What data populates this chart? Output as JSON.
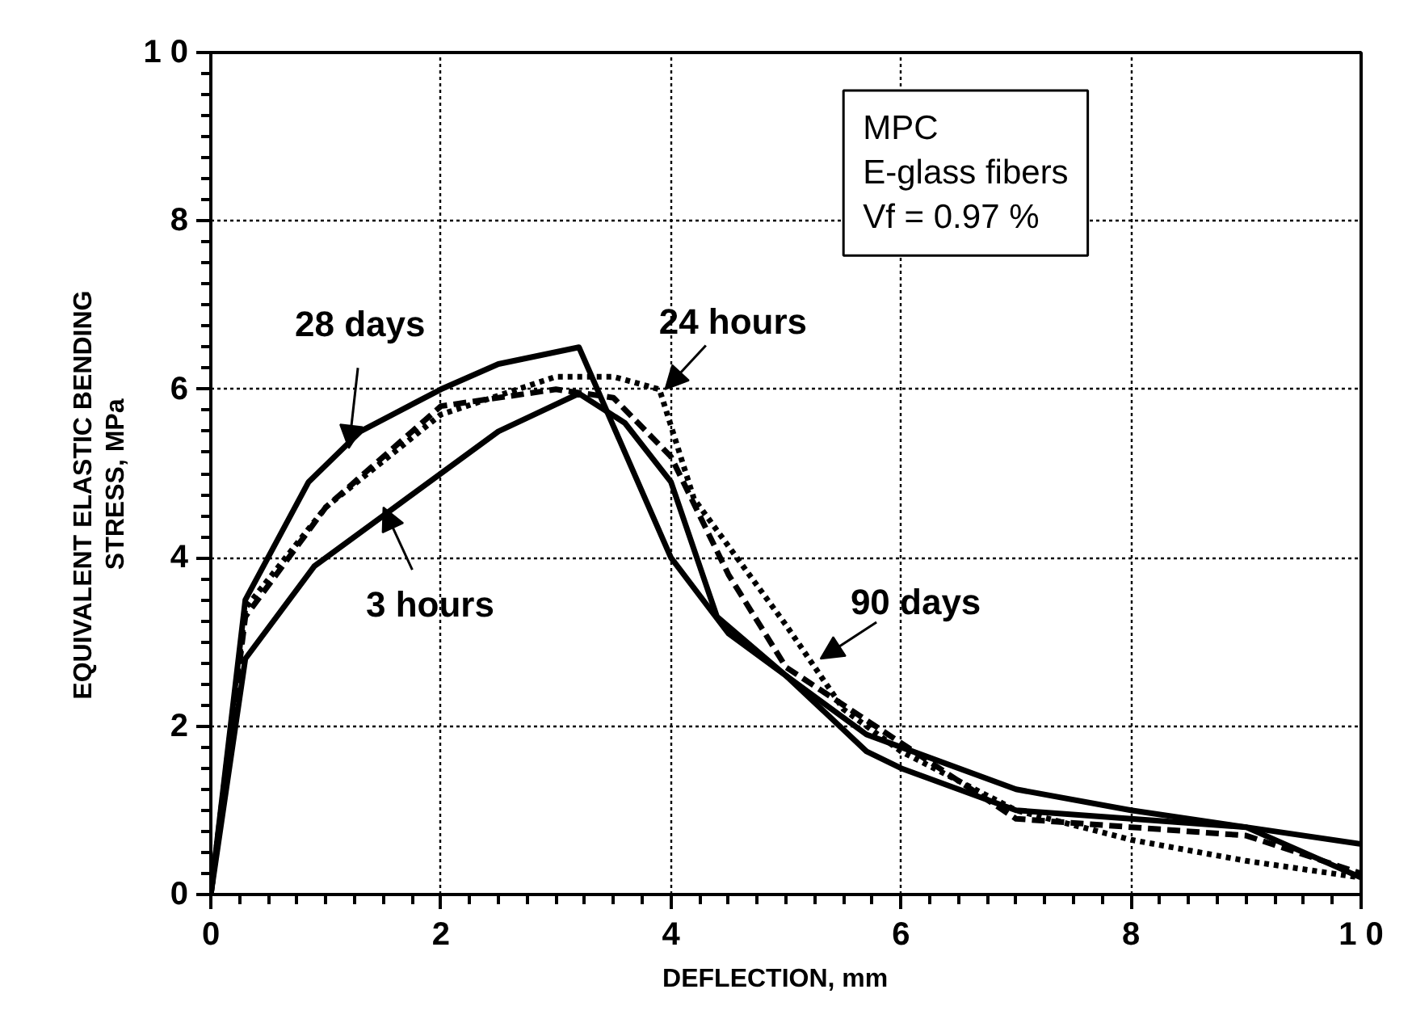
{
  "chart_data": {
    "type": "line",
    "xlabel": "DEFLECTION,    mm",
    "ylabel": "EQUIVALENT    ELASTIC    BENDING\nSTRESS,    MPa",
    "xlim": [
      0,
      10
    ],
    "ylim": [
      0,
      10
    ],
    "xticks": [
      0,
      2,
      4,
      6,
      8,
      {
        "value": 10,
        "label": "1 0"
      }
    ],
    "yticks": [
      0,
      2,
      4,
      6,
      8,
      {
        "value": 10,
        "label": "1 0"
      }
    ],
    "grid": true,
    "series": [
      {
        "color": "#000000",
        "line_style": "solid",
        "x": [
          0,
          0.3,
          0.85,
          1.3,
          2,
          2.5,
          3.2,
          4,
          4.5,
          5,
          5.7,
          6,
          7,
          8,
          9,
          10
        ],
        "values": [
          0,
          3.5,
          4.9,
          5.5,
          6.0,
          6.3,
          6.5,
          4.0,
          3.1,
          2.6,
          1.7,
          1.5,
          1.0,
          0.9,
          0.8,
          0.2
        ]
      },
      {
        "color": "#000000",
        "line_style": "solid",
        "x": [
          0,
          0.3,
          0.9,
          1.5,
          2.5,
          3.2,
          3.6,
          4,
          4.4,
          5,
          5.7,
          6,
          7,
          8,
          9,
          10
        ],
        "values": [
          0,
          2.8,
          3.9,
          4.5,
          5.5,
          5.95,
          5.6,
          4.9,
          3.3,
          2.6,
          1.9,
          1.75,
          1.25,
          1.0,
          0.8,
          0.6
        ]
      },
      {
        "color": "#000000",
        "line_style": "dotted",
        "x": [
          0,
          0.3,
          1,
          2,
          3,
          3.5,
          3.9,
          4.2,
          5,
          5.5,
          6,
          7,
          8,
          9,
          10
        ],
        "values": [
          0,
          3.4,
          4.6,
          5.7,
          6.15,
          6.15,
          6.0,
          4.7,
          3.2,
          2.2,
          1.7,
          1.0,
          0.65,
          0.4,
          0.2
        ]
      },
      {
        "color": "#000000",
        "line_style": "dashed",
        "x": [
          0,
          0.3,
          1,
          2,
          3,
          3.5,
          4,
          4.5,
          5,
          6,
          7,
          8,
          9,
          10
        ],
        "values": [
          0,
          3.3,
          4.6,
          5.8,
          6.0,
          5.9,
          5.2,
          3.8,
          2.7,
          1.8,
          0.9,
          0.8,
          0.7,
          0.25
        ]
      }
    ],
    "annotations": [
      {
        "text": "28  days",
        "x": 1.2,
        "y": 5.3
      },
      {
        "text": "24  hours",
        "x": 3.95,
        "y": 6.0
      },
      {
        "text": "3  hours",
        "x": 1.5,
        "y": 4.6
      },
      {
        "text": "90  days",
        "x": 5.3,
        "y": 2.8
      },
      "MPC",
      "E-glass fibers",
      "Vf  =  0.97  %"
    ]
  }
}
